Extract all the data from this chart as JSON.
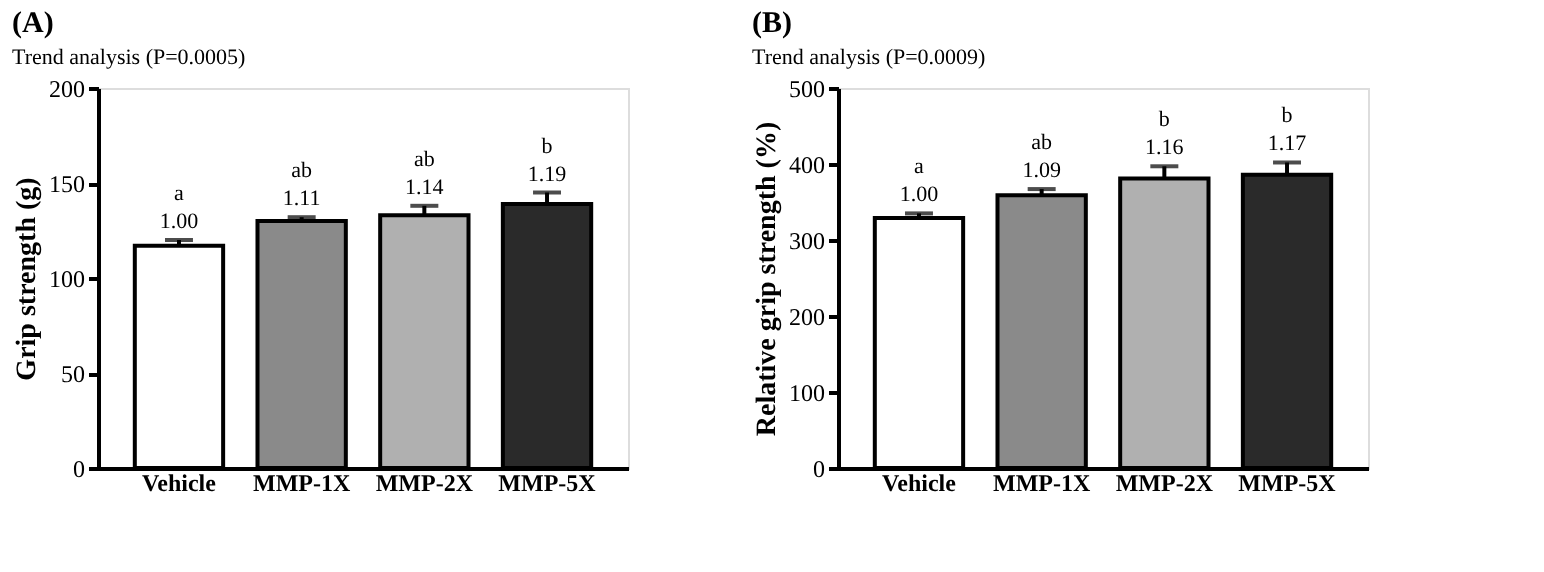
{
  "chart_data": [
    {
      "type": "bar",
      "title": "(A)",
      "subtitle": "Trend analysis (P=0.0005)",
      "ylabel": "Grip strength (g)",
      "categories": [
        "Vehicle",
        "MMP-1X",
        "MMP-2X",
        "MMP-5X"
      ],
      "values": [
        117,
        130,
        133,
        139
      ],
      "errors": [
        3,
        2,
        5,
        6
      ],
      "colors": [
        "#ffffff",
        "#8a8a8a",
        "#b0b0b0",
        "#2a2a2a"
      ],
      "ylim": [
        0,
        200
      ],
      "yticks": [
        0,
        50,
        100,
        150,
        200
      ],
      "grid": false,
      "annotations": [
        {
          "text": "1.00",
          "x": "Vehicle",
          "y": 117
        },
        {
          "text": "a",
          "x": "Vehicle",
          "y": 117
        },
        {
          "text": "1.11",
          "x": "MMP-1X",
          "y": 130
        },
        {
          "text": "ab",
          "x": "MMP-1X",
          "y": 130
        },
        {
          "text": "1.14",
          "x": "MMP-2X",
          "y": 133
        },
        {
          "text": "ab",
          "x": "MMP-2X",
          "y": 133
        },
        {
          "text": "1.19",
          "x": "MMP-5X",
          "y": 139
        },
        {
          "text": "b",
          "x": "MMP-5X",
          "y": 139
        }
      ]
    },
    {
      "type": "bar",
      "title": "(B)",
      "subtitle": "Trend analysis (P=0.0009)",
      "ylabel": "Relative grip strength (%)",
      "categories": [
        "Vehicle",
        "MMP-1X",
        "MMP-2X",
        "MMP-5X"
      ],
      "values": [
        329,
        359,
        381,
        386
      ],
      "errors": [
        6,
        8,
        16,
        16
      ],
      "colors": [
        "#ffffff",
        "#8a8a8a",
        "#b0b0b0",
        "#2a2a2a"
      ],
      "ylim": [
        0,
        500
      ],
      "yticks": [
        0,
        100,
        200,
        300,
        400,
        500
      ],
      "grid": false,
      "annotations": [
        {
          "text": "1.00",
          "x": "Vehicle",
          "y": 329
        },
        {
          "text": "a",
          "x": "Vehicle",
          "y": 329
        },
        {
          "text": "1.09",
          "x": "MMP-1X",
          "y": 359
        },
        {
          "text": "ab",
          "x": "MMP-1X",
          "y": 359
        },
        {
          "text": "1.16",
          "x": "MMP-2X",
          "y": 381
        },
        {
          "text": "b",
          "x": "MMP-2X",
          "y": 381
        },
        {
          "text": "1.17",
          "x": "MMP-5X",
          "y": 386
        },
        {
          "text": "b",
          "x": "MMP-5X",
          "y": 386
        }
      ]
    }
  ]
}
